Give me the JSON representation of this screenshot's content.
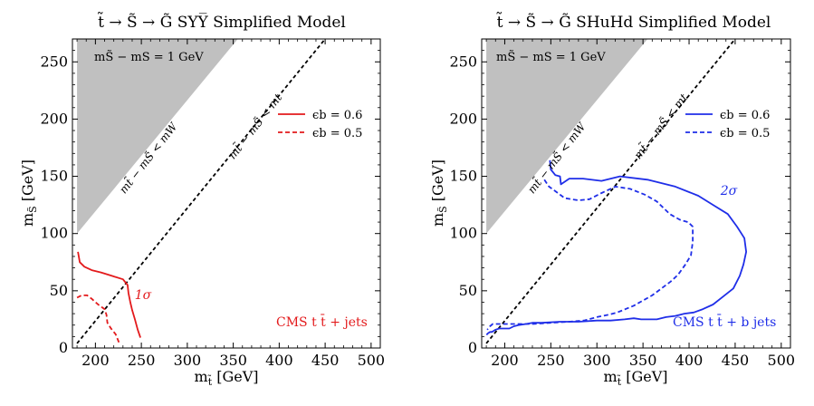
{
  "chart_data": [
    {
      "type": "line",
      "title": "t̃ → S̃ → G̃  SYY̅ Simplified Model",
      "xlabel": "m",
      "xlabel_sub": "t̃",
      "xlabel_unit": " [GeV]",
      "ylabel": "m",
      "ylabel_sub": "S̃",
      "ylabel_unit": " [GeV]",
      "xlim": [
        175,
        510
      ],
      "ylim": [
        0,
        270
      ],
      "xticks": [
        200,
        250,
        300,
        350,
        400,
        450,
        500
      ],
      "yticks": [
        0,
        50,
        100,
        150,
        200,
        250
      ],
      "shaded_region": {
        "color": "#c0c0c0",
        "polygon": [
          [
            180,
            100
          ],
          [
            180,
            270
          ],
          [
            355,
            270
          ]
        ]
      },
      "diagonal": {
        "x": [
          180,
          450
        ],
        "y": [
          4,
          270
        ]
      },
      "region_labels": [
        {
          "text": "m",
          "x": 193,
          "y": 253
        },
        {
          "text": "m",
          "x": 200,
          "y": 160
        },
        {
          "text": "m",
          "x": 290,
          "y": 225
        }
      ],
      "region_texts": {
        "mass_diff": "mS̃ − mS = 1 GeV",
        "w_bound": "mt̃ − mS̃ < mW",
        "t_bound": "mt̃ − mS̃ < mt"
      },
      "series": [
        {
          "name": "ϵb = 0.6",
          "color": "#e31a1c",
          "dash": "solid",
          "x": [
            181,
            183,
            188,
            196,
            206,
            218,
            230,
            235,
            236,
            238,
            240,
            243,
            246,
            249
          ],
          "y": [
            84,
            75,
            71,
            68,
            66,
            63,
            60,
            55,
            48,
            40,
            33,
            25,
            16,
            9
          ]
        },
        {
          "name": "ϵb = 0.5",
          "color": "#e31a1c",
          "dash": "dashed",
          "x": [
            180,
            185,
            191,
            196,
            203,
            210,
            212,
            213,
            217,
            222,
            226
          ],
          "y": [
            44,
            46,
            46,
            43,
            38,
            34,
            29,
            22,
            17,
            12,
            4
          ]
        }
      ],
      "annotations": [
        {
          "text": "1σ",
          "color": "#e31a1c"
        },
        {
          "text": "CMS t t̄ + jets",
          "color": "#e31a1c"
        }
      ]
    },
    {
      "type": "line",
      "title": "t̃ → S̃ → G̃  SHuHd Simplified Model",
      "xlabel": "m",
      "xlabel_sub": "t̃",
      "xlabel_unit": " [GeV]",
      "ylabel": "m",
      "ylabel_sub": "S̃",
      "ylabel_unit": " [GeV]",
      "xlim": [
        175,
        510
      ],
      "ylim": [
        0,
        270
      ],
      "xticks": [
        200,
        250,
        300,
        350,
        400,
        450,
        500
      ],
      "yticks": [
        0,
        50,
        100,
        150,
        200,
        250
      ],
      "shaded_region": {
        "color": "#c0c0c0",
        "polygon": [
          [
            180,
            100
          ],
          [
            180,
            270
          ],
          [
            355,
            270
          ]
        ]
      },
      "diagonal": {
        "x": [
          180,
          450
        ],
        "y": [
          4,
          270
        ]
      },
      "series": [
        {
          "name": "ϵb = 0.6",
          "color": "#1f2ee8",
          "dash": "solid",
          "x": [
            249,
            250,
            255,
            260,
            261,
            270,
            285,
            305,
            325,
            355,
            385,
            410,
            428,
            442,
            452,
            460,
            462,
            459,
            455,
            448,
            437,
            426,
            415,
            405,
            395,
            385,
            375,
            365,
            355,
            348,
            340,
            330,
            315,
            300,
            280,
            260,
            240,
            230,
            223,
            215,
            210,
            205,
            200,
            194,
            190,
            188,
            186,
            184,
            182,
            181,
            180
          ],
          "y": [
            164,
            156,
            151,
            150,
            143,
            148,
            148,
            146,
            150,
            147,
            141,
            133,
            124,
            117,
            106,
            96,
            84,
            73,
            63,
            52,
            45,
            38,
            34,
            31,
            30,
            28,
            27,
            25,
            25,
            25,
            26,
            25,
            24,
            24,
            23,
            23,
            22,
            22,
            21,
            20,
            19,
            17,
            17,
            17,
            16,
            15,
            14,
            14,
            13,
            12,
            12
          ]
        },
        {
          "name": "ϵb = 0.5",
          "color": "#1f2ee8",
          "dash": "dashed",
          "x": [
            243,
            248,
            255,
            265,
            280,
            292,
            304,
            320,
            336,
            352,
            365,
            379,
            390,
            399,
            404,
            404,
            402,
            396,
            388,
            380,
            370,
            360,
            349,
            340,
            331,
            322,
            312,
            300,
            286,
            270,
            250,
            230,
            210,
            195,
            187,
            184,
            181
          ],
          "y": [
            147,
            141,
            137,
            131,
            129,
            130,
            135,
            141,
            139,
            134,
            128,
            117,
            112,
            110,
            106,
            93,
            81,
            73,
            64,
            58,
            52,
            46,
            41,
            37,
            34,
            31,
            29,
            27,
            24,
            23,
            22,
            21,
            21,
            21,
            21,
            19,
            16
          ]
        }
      ],
      "annotations": [
        {
          "text": "2σ",
          "color": "#1f2ee8"
        },
        {
          "text": "CMS t t̄ + b jets",
          "color": "#1f2ee8"
        }
      ]
    }
  ],
  "panels_text": [
    {
      "title_main": "t̃ → S̃ → G̃  SYY̅ Simplified Model"
    },
    {
      "title_main": "t̃ → S̃ → G̃  SHuHd Simplified Model"
    }
  ]
}
